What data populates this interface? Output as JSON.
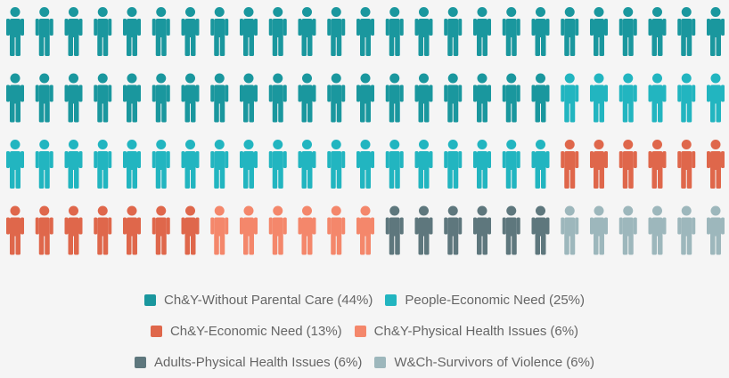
{
  "chart_data": {
    "type": "pictogram",
    "rows": 4,
    "columns": 25,
    "series": [
      {
        "name": "Ch&Y-Without Parental Care",
        "value": 44,
        "value_label": "(44%)",
        "color": "#1a979e"
      },
      {
        "name": "People-Economic Need",
        "value": 25,
        "value_label": "(25%)",
        "color": "#22b5c0"
      },
      {
        "name": "Ch&Y-Economic Need",
        "value": 13,
        "value_label": "(13%)",
        "color": "#df674b"
      },
      {
        "name": "Ch&Y-Physical Health Issues",
        "value": 6,
        "value_label": "(6%)",
        "color": "#f4876b"
      },
      {
        "name": "Adults-Physical Health Issues",
        "value": 6,
        "value_label": "(6%)",
        "color": "#5e777d"
      },
      {
        "name": "W&Ch-Survivors of Violence",
        "value": 6,
        "value_label": "(6%)",
        "color": "#9db7bc"
      }
    ]
  }
}
